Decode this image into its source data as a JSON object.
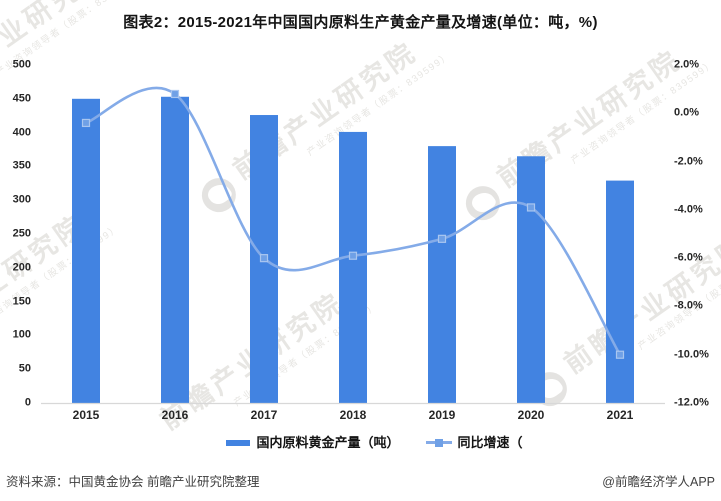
{
  "title": "图表2：2015-2021年中国国内原料生产黄金产量及增速(单位：吨，%)",
  "chart_data": {
    "type": "bar+line",
    "title": "图表2：2015-2021年中国国内原料生产黄金产量及增速(单位：吨，%)",
    "categories": [
      "2015",
      "2016",
      "2017",
      "2018",
      "2019",
      "2020",
      "2021"
    ],
    "series": [
      {
        "name": "国内原料黄金产量（吨）",
        "type": "bar",
        "axis": "left",
        "values": [
          450,
          453,
          426,
          401,
          380,
          365,
          329
        ]
      },
      {
        "name": "同比增速（",
        "type": "line",
        "axis": "right",
        "values": [
          -0.4,
          0.8,
          -6.0,
          -5.9,
          -5.2,
          -3.9,
          -10.0
        ]
      }
    ],
    "left_axis": {
      "min": 0,
      "max": 500,
      "tick_step": 50,
      "tick_labels": [
        "500",
        "450",
        "400",
        "350",
        "300",
        "250",
        "200",
        "150",
        "100",
        "50",
        "0"
      ]
    },
    "right_axis": {
      "min": -12,
      "max": 2,
      "tick_step": 2,
      "tick_labels": [
        "2.0%",
        "0.0%",
        "-2.0%",
        "-4.0%",
        "-6.0%",
        "-8.0%",
        "-10.0%",
        "-12.0%"
      ]
    },
    "grid": false,
    "legend_position": "bottom"
  },
  "footer": {
    "source": "资料来源：中国黄金协会 前瞻产业研究院整理",
    "credit": "@前瞻经济学人APP"
  },
  "watermark": {
    "main": "前瞻产业研究院",
    "sub": "产业咨询领导者（股票：839599）"
  },
  "colors": {
    "bar": "#4283E1",
    "line": "#84ABE8",
    "marker": "#6FA0E6",
    "marker_border": "#A9C6F0",
    "axis_line": "#D8D8D8",
    "tick_text": "#262626",
    "watermark_text": "#E7E6E3",
    "watermark_ball": "#E4E3E1"
  }
}
